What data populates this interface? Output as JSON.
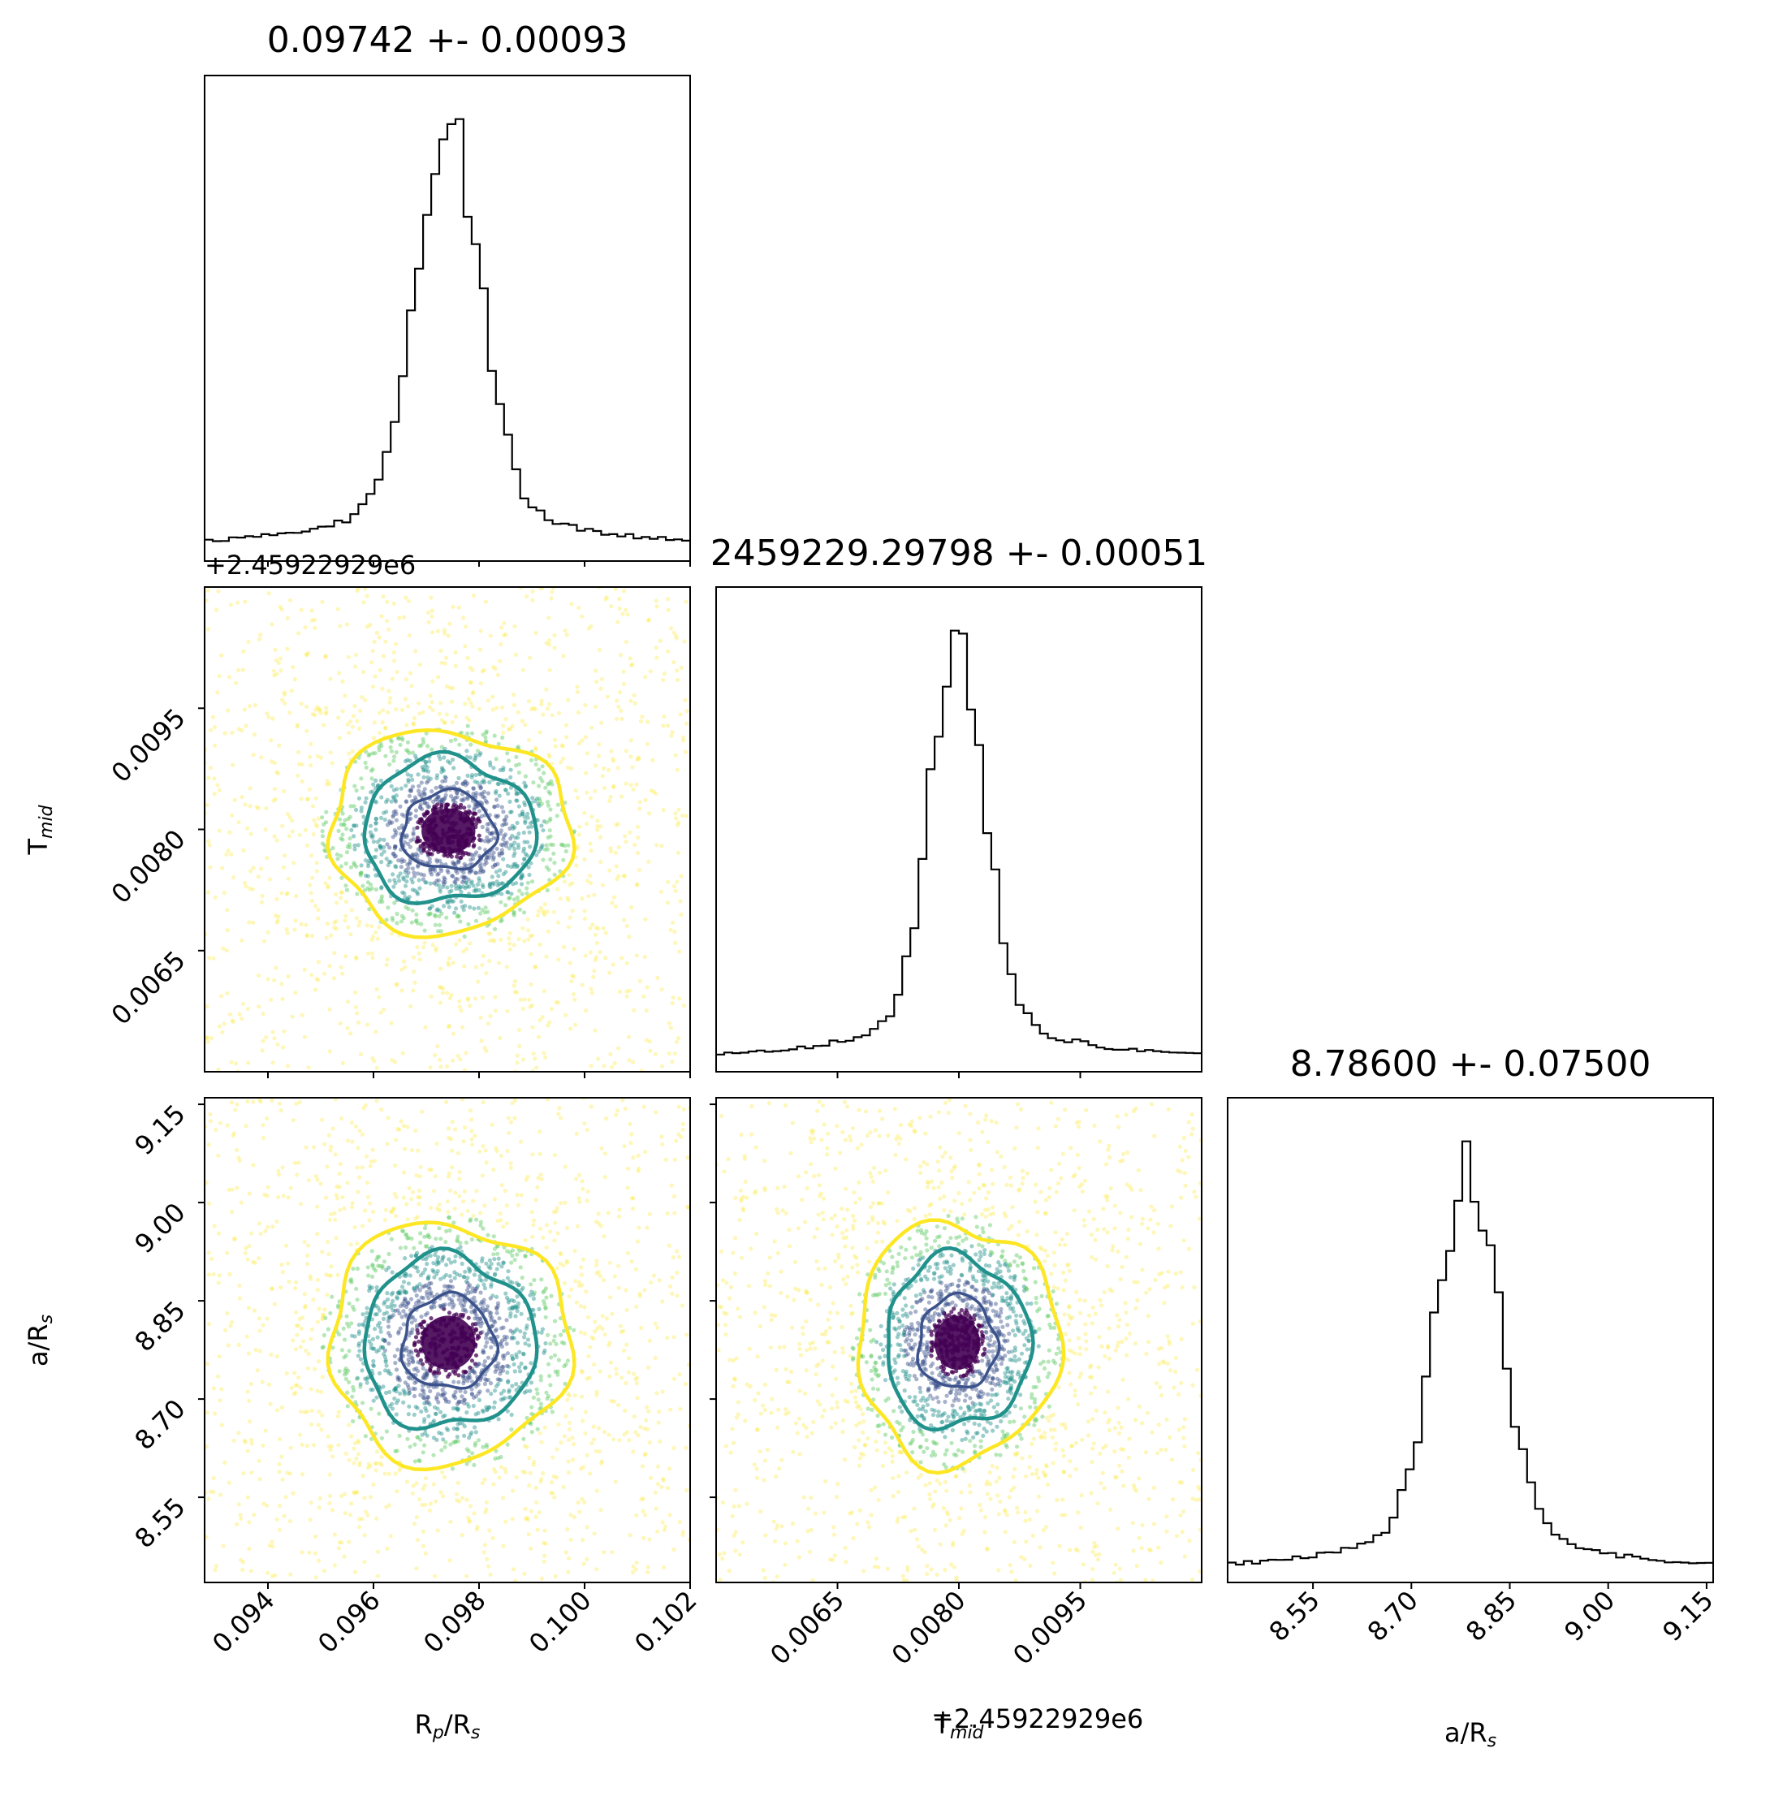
{
  "chart_data": {
    "type": "corner",
    "parameters": [
      {
        "name": "R_p/R_s",
        "label_main": "R",
        "label_sub": "p",
        "label_tail": "/R",
        "label_sub2": "s",
        "title": "0.09742 +- 0.00093",
        "median": 0.09742,
        "sigma": 0.00093,
        "range": [
          0.0928,
          0.102
        ],
        "ticks": [
          "0.094",
          "0.096",
          "0.098",
          "0.100",
          "0.102"
        ],
        "tick_values": [
          0.094,
          0.096,
          0.098,
          0.1,
          0.102
        ]
      },
      {
        "name": "T_mid",
        "label_main": "T",
        "label_sub": "mid",
        "label_tail": "",
        "label_sub2": "",
        "title": "2459229.29798 +- 0.00051",
        "median": 0.00798,
        "sigma": 0.00051,
        "range": [
          0.005,
          0.011
        ],
        "ticks": [
          "0.0065",
          "0.0080",
          "0.0095"
        ],
        "tick_values": [
          0.0065,
          0.008,
          0.0095
        ],
        "offset_text": "+2.45922929e6"
      },
      {
        "name": "a/R_s",
        "label_main": "a/R",
        "label_sub": "s",
        "label_tail": "",
        "label_sub2": "",
        "title": "8.78600 +- 0.07500",
        "median": 8.786,
        "sigma": 0.075,
        "range": [
          8.42,
          9.16
        ],
        "ticks": [
          "8.55",
          "8.70",
          "8.85",
          "9.00",
          "9.15"
        ],
        "tick_values": [
          8.55,
          8.7,
          8.85,
          9.0,
          9.15
        ]
      }
    ],
    "scatter_colors": [
      "#440154",
      "#3b528b",
      "#21918c",
      "#5ec962",
      "#fde725"
    ],
    "contour_colors": [
      "#3b528b",
      "#21918c",
      "#fde725"
    ],
    "histogram_color": "#000000",
    "histogram_bins": 60
  }
}
